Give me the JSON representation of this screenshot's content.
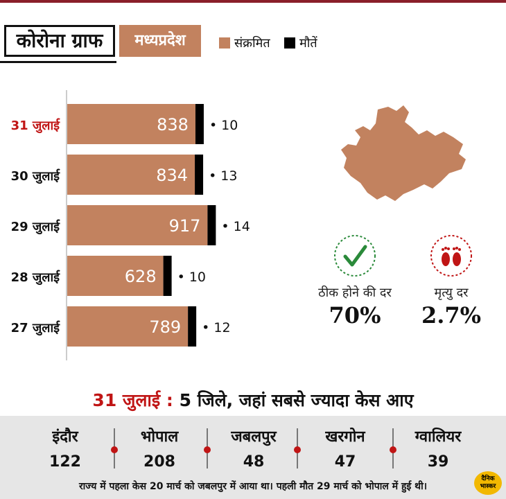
{
  "header": {
    "title": "कोरोना ग्राफ",
    "state": "मध्यप्रदेश",
    "legend": [
      {
        "label": "संक्रमित",
        "color": "#c2825f"
      },
      {
        "label": "मौतें",
        "color": "#000000"
      }
    ]
  },
  "chart_data": {
    "type": "bar",
    "orientation": "horizontal",
    "stacked": true,
    "categories": [
      "31 जुलाई",
      "30 जुलाई",
      "29 जुलाई",
      "28 जुलाई",
      "27 जुलाई"
    ],
    "highlight_category": "31 जुलाई",
    "series": [
      {
        "name": "संक्रमित",
        "color": "#c2825f",
        "values": [
          838,
          834,
          917,
          628,
          789
        ]
      },
      {
        "name": "मौतें",
        "color": "#000000",
        "values": [
          10,
          13,
          14,
          10,
          12
        ]
      }
    ],
    "death_prefix": "•",
    "grid": false,
    "legend_position": "top-right"
  },
  "stats": {
    "recovery": {
      "label": "ठीक होने की दर",
      "value": "70%",
      "icon": "checkmark-icon"
    },
    "mortality": {
      "label": "मृत्यु दर",
      "value": "2.7%",
      "icon": "footprints-icon"
    }
  },
  "headline": {
    "date": "31 जुलाई :",
    "text": "5 जिले, जहां सबसे ज्यादा केस आए"
  },
  "districts": [
    {
      "name": "इंदौर",
      "cases": "122"
    },
    {
      "name": "भोपाल",
      "cases": "208"
    },
    {
      "name": "जबलपुर",
      "cases": "48"
    },
    {
      "name": "खरगोन",
      "cases": "47"
    },
    {
      "name": "ग्वालियर",
      "cases": "39"
    }
  ],
  "footnote": "राज्य में पहला केस 20 मार्च को जबलपुर में आया था। पहली मौत 29 मार्च को भोपाल में हुई थी।",
  "logo": {
    "line1": "दैनिक",
    "line2": "भास्कर"
  },
  "colors": {
    "accent_red": "#c01515",
    "bar": "#c2825f",
    "panel": "#e6e6e6"
  }
}
